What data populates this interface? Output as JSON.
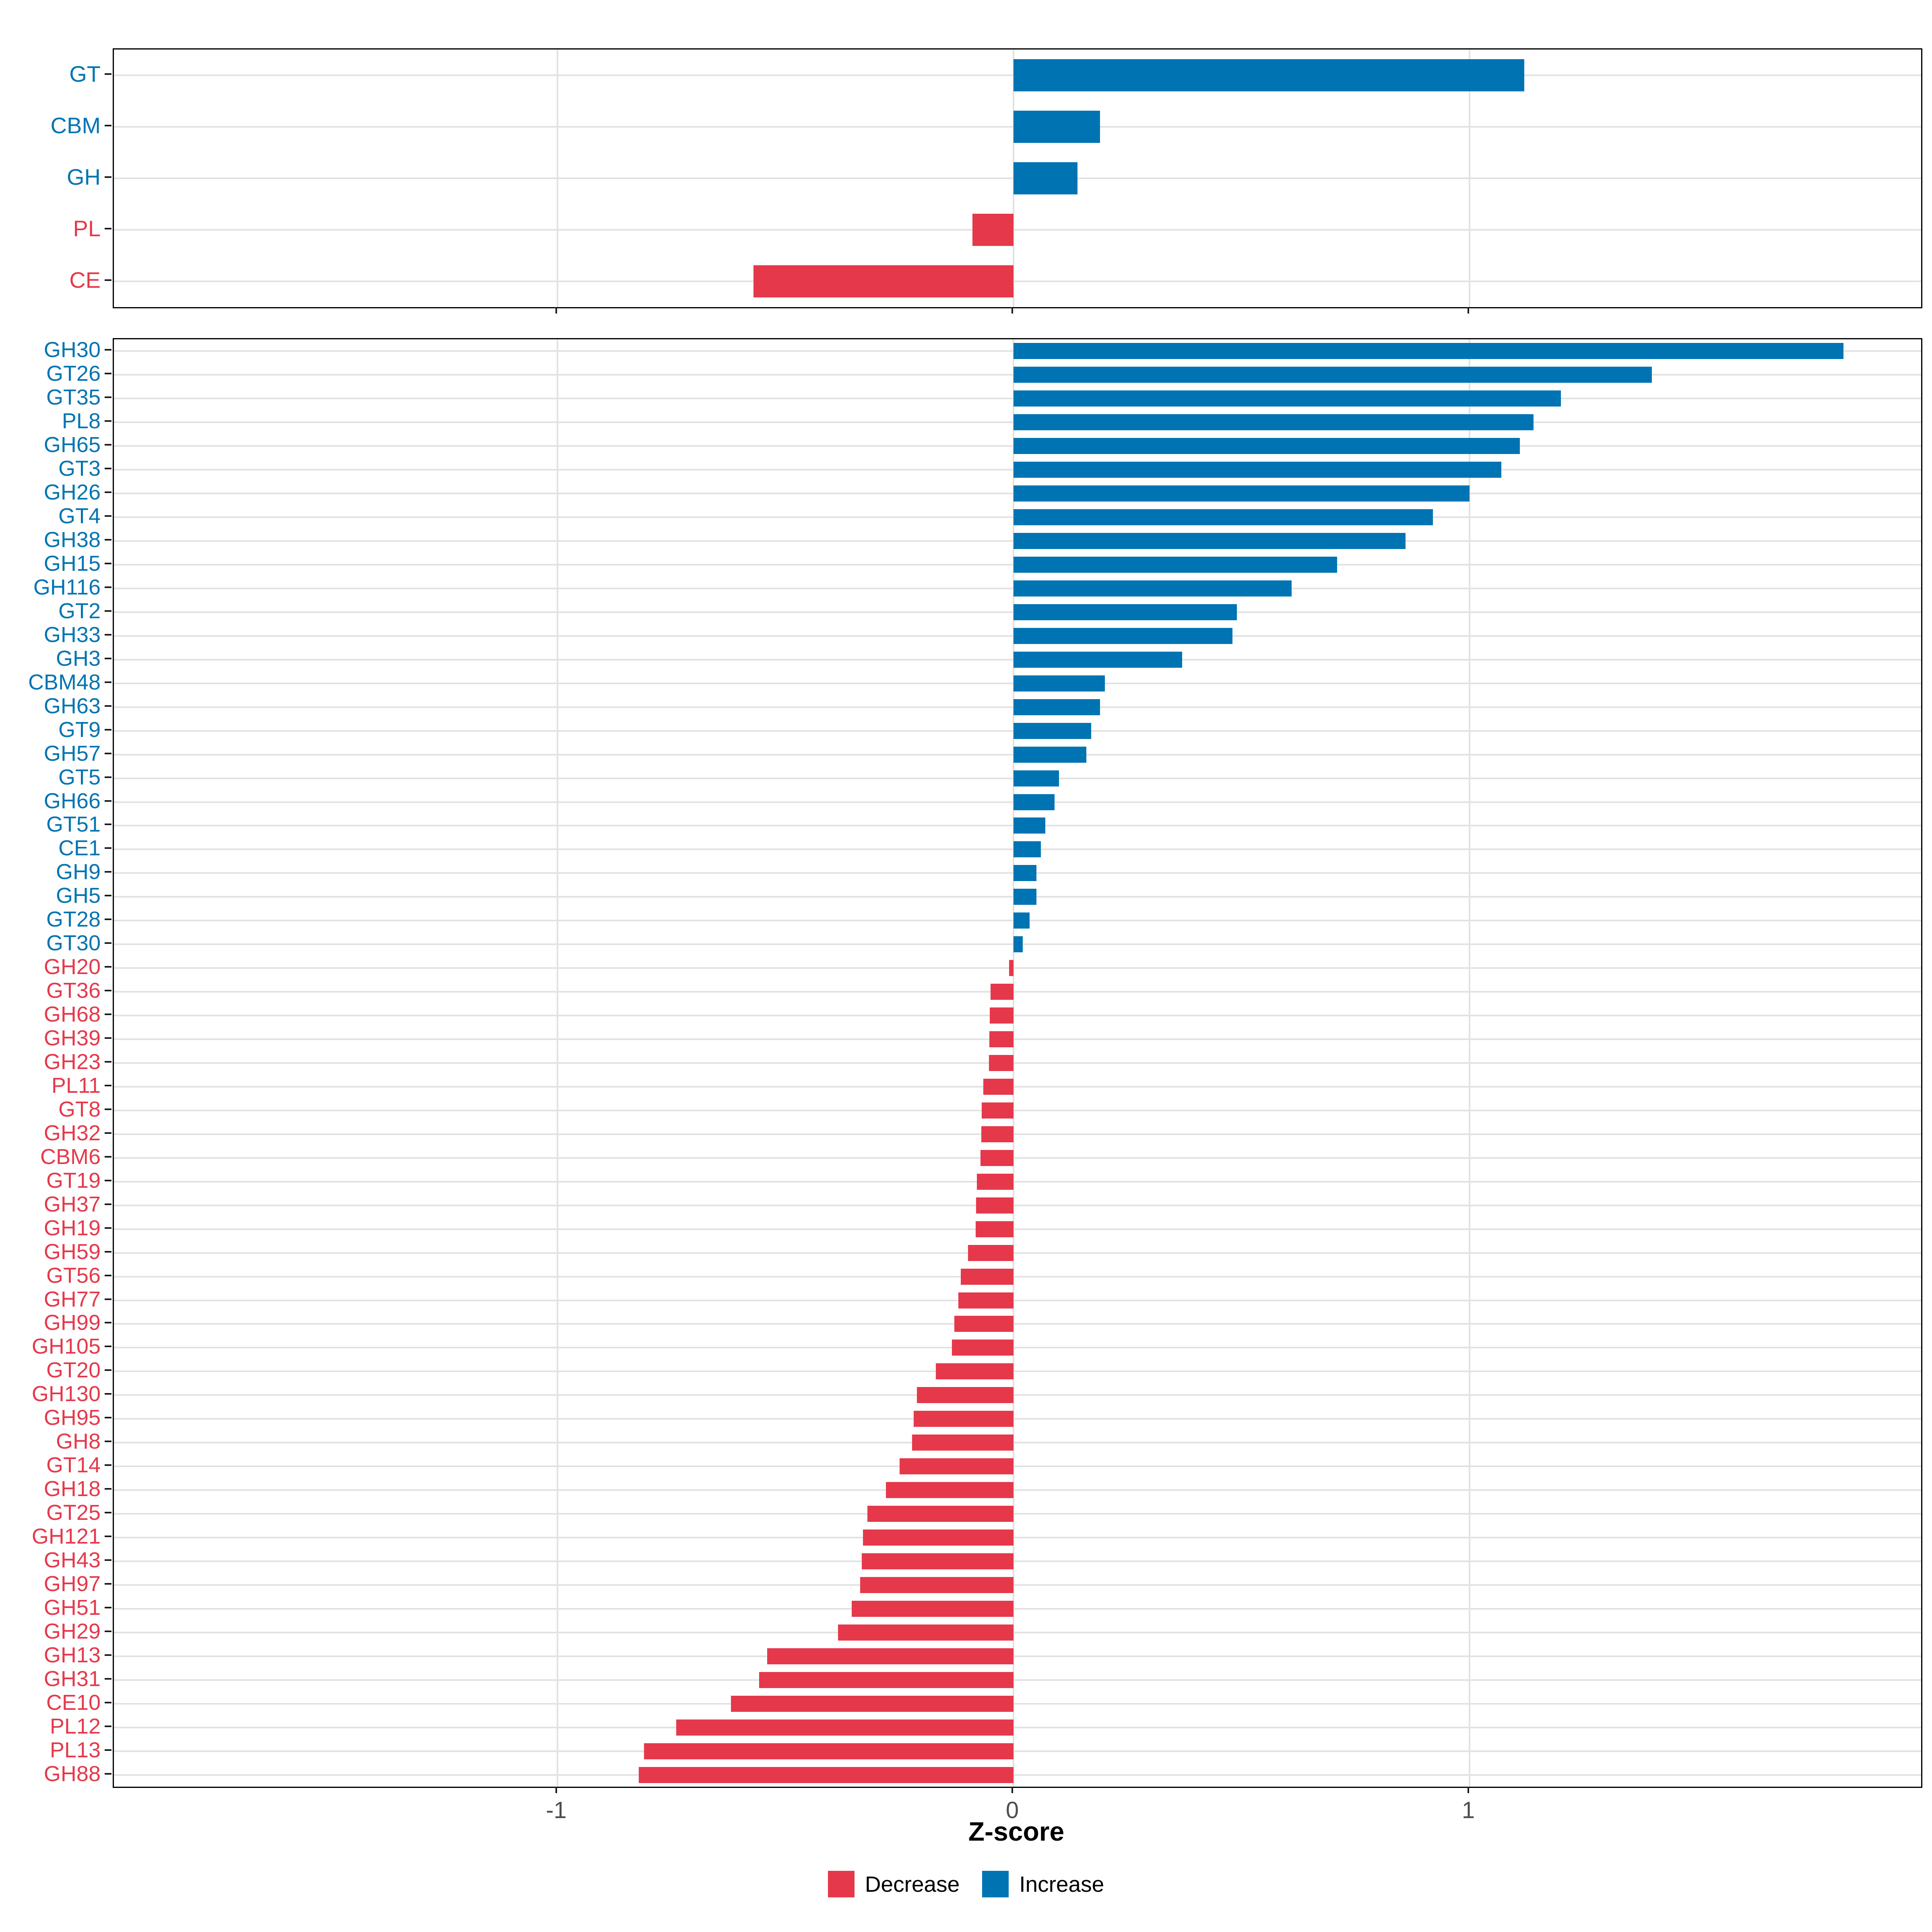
{
  "chart_data": {
    "type": "bar",
    "orientation": "horizontal",
    "title": "",
    "xlabel": "Z-score",
    "ylabel": "",
    "xlim": [
      -1.97,
      1.99
    ],
    "x_ticks": [
      -1,
      0,
      1
    ],
    "x_tick_labels": [
      "-1",
      "0",
      "1"
    ],
    "grid": "on",
    "legend_position": "bottom",
    "colors": {
      "increase": "#0074B2",
      "decrease": "#E5394B",
      "gridline": "#E2E2E2",
      "tick_label": "#4D4D4D",
      "panel_border": "#000000"
    },
    "legend": [
      {
        "label": "Decrease",
        "color": "#E5394B"
      },
      {
        "label": "Increase",
        "color": "#0074B2"
      }
    ],
    "panels": [
      {
        "name": "class-summary",
        "categories": [
          {
            "label": "GT",
            "value": 1.12,
            "direction": "increase"
          },
          {
            "label": "CBM",
            "value": 0.19,
            "direction": "increase"
          },
          {
            "label": "GH",
            "value": 0.14,
            "direction": "increase"
          },
          {
            "label": "PL",
            "value": -0.09,
            "direction": "decrease"
          },
          {
            "label": "CE",
            "value": -0.57,
            "direction": "decrease"
          }
        ]
      },
      {
        "name": "family-detail",
        "categories": [
          {
            "label": "GH30",
            "value": 1.82,
            "direction": "increase"
          },
          {
            "label": "GT26",
            "value": 1.4,
            "direction": "increase"
          },
          {
            "label": "GT35",
            "value": 1.2,
            "direction": "increase"
          },
          {
            "label": "PL8",
            "value": 1.14,
            "direction": "increase"
          },
          {
            "label": "GH65",
            "value": 1.11,
            "direction": "increase"
          },
          {
            "label": "GT3",
            "value": 1.07,
            "direction": "increase"
          },
          {
            "label": "GH26",
            "value": 1.0,
            "direction": "increase"
          },
          {
            "label": "GT4",
            "value": 0.92,
            "direction": "increase"
          },
          {
            "label": "GH38",
            "value": 0.86,
            "direction": "increase"
          },
          {
            "label": "GH15",
            "value": 0.71,
            "direction": "increase"
          },
          {
            "label": "GH116",
            "value": 0.61,
            "direction": "increase"
          },
          {
            "label": "GT2",
            "value": 0.49,
            "direction": "increase"
          },
          {
            "label": "GH33",
            "value": 0.48,
            "direction": "increase"
          },
          {
            "label": "GH3",
            "value": 0.37,
            "direction": "increase"
          },
          {
            "label": "CBM48",
            "value": 0.2,
            "direction": "increase"
          },
          {
            "label": "GH63",
            "value": 0.19,
            "direction": "increase"
          },
          {
            "label": "GT9",
            "value": 0.17,
            "direction": "increase"
          },
          {
            "label": "GH57",
            "value": 0.16,
            "direction": "increase"
          },
          {
            "label": "GT5",
            "value": 0.1,
            "direction": "increase"
          },
          {
            "label": "GH66",
            "value": 0.09,
            "direction": "increase"
          },
          {
            "label": "GT51",
            "value": 0.07,
            "direction": "increase"
          },
          {
            "label": "CE1",
            "value": 0.06,
            "direction": "increase"
          },
          {
            "label": "GH9",
            "value": 0.05,
            "direction": "increase"
          },
          {
            "label": "GH5",
            "value": 0.05,
            "direction": "increase"
          },
          {
            "label": "GT28",
            "value": 0.035,
            "direction": "increase"
          },
          {
            "label": "GT30",
            "value": 0.02,
            "direction": "increase"
          },
          {
            "label": "GH20",
            "value": -0.01,
            "direction": "decrease"
          },
          {
            "label": "GT36",
            "value": -0.05,
            "direction": "decrease"
          },
          {
            "label": "GH68",
            "value": -0.052,
            "direction": "decrease"
          },
          {
            "label": "GH39",
            "value": -0.053,
            "direction": "decrease"
          },
          {
            "label": "GH23",
            "value": -0.054,
            "direction": "decrease"
          },
          {
            "label": "PL11",
            "value": -0.066,
            "direction": "decrease"
          },
          {
            "label": "GT8",
            "value": -0.07,
            "direction": "decrease"
          },
          {
            "label": "GH32",
            "value": -0.071,
            "direction": "decrease"
          },
          {
            "label": "CBM6",
            "value": -0.072,
            "direction": "decrease"
          },
          {
            "label": "GT19",
            "value": -0.08,
            "direction": "decrease"
          },
          {
            "label": "GH37",
            "value": -0.082,
            "direction": "decrease"
          },
          {
            "label": "GH19",
            "value": -0.083,
            "direction": "decrease"
          },
          {
            "label": "GH59",
            "value": -0.1,
            "direction": "decrease"
          },
          {
            "label": "GT56",
            "value": -0.116,
            "direction": "decrease"
          },
          {
            "label": "GH77",
            "value": -0.121,
            "direction": "decrease"
          },
          {
            "label": "GH99",
            "value": -0.13,
            "direction": "decrease"
          },
          {
            "label": "GH105",
            "value": -0.135,
            "direction": "decrease"
          },
          {
            "label": "GT20",
            "value": -0.17,
            "direction": "decrease"
          },
          {
            "label": "GH130",
            "value": -0.212,
            "direction": "decrease"
          },
          {
            "label": "GH95",
            "value": -0.219,
            "direction": "decrease"
          },
          {
            "label": "GH8",
            "value": -0.222,
            "direction": "decrease"
          },
          {
            "label": "GT14",
            "value": -0.25,
            "direction": "decrease"
          },
          {
            "label": "GH18",
            "value": -0.28,
            "direction": "decrease"
          },
          {
            "label": "GT25",
            "value": -0.32,
            "direction": "decrease"
          },
          {
            "label": "GH121",
            "value": -0.33,
            "direction": "decrease"
          },
          {
            "label": "GH43",
            "value": -0.333,
            "direction": "decrease"
          },
          {
            "label": "GH97",
            "value": -0.336,
            "direction": "decrease"
          },
          {
            "label": "GH51",
            "value": -0.355,
            "direction": "decrease"
          },
          {
            "label": "GH29",
            "value": -0.385,
            "direction": "decrease"
          },
          {
            "label": "GH13",
            "value": -0.54,
            "direction": "decrease"
          },
          {
            "label": "GH31",
            "value": -0.558,
            "direction": "decrease"
          },
          {
            "label": "CE10",
            "value": -0.62,
            "direction": "decrease"
          },
          {
            "label": "PL12",
            "value": -0.74,
            "direction": "decrease"
          },
          {
            "label": "PL13",
            "value": -0.81,
            "direction": "decrease"
          },
          {
            "label": "GH88",
            "value": -0.822,
            "direction": "decrease"
          }
        ]
      }
    ]
  }
}
